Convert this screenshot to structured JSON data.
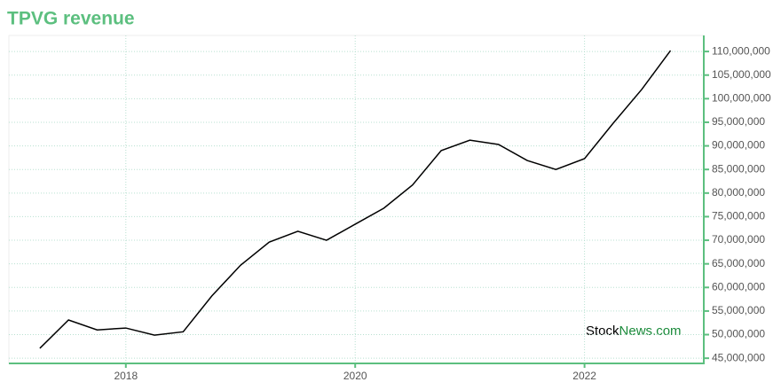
{
  "chart_data": {
    "type": "line",
    "title": "TPVG revenue",
    "watermark": {
      "brand": "Stock",
      "domain": "News.com"
    },
    "x": [
      2017.25,
      2017.5,
      2017.75,
      2018,
      2018.25,
      2018.5,
      2018.75,
      2019,
      2019.25,
      2019.5,
      2019.75,
      2020,
      2020.25,
      2020.5,
      2020.75,
      2021,
      2021.25,
      2021.5,
      2021.75,
      2022,
      2022.25,
      2022.5,
      2022.75
    ],
    "series": [
      {
        "color": "#000000",
        "values": [
          47100000,
          53100000,
          51000000,
          51400000,
          49900000,
          50600000,
          58200000,
          64700000,
          69600000,
          71900000,
          70000000,
          73400000,
          76800000,
          81700000,
          89000000,
          91200000,
          90300000,
          86900000,
          85000000,
          87300000,
          94800000,
          102000000,
          110200000
        ]
      }
    ],
    "xlim": [
      2016.98,
      2023.04
    ],
    "xticks": [
      2018,
      2020,
      2022
    ],
    "ylim": [
      43900000,
      113400000
    ],
    "yticks": [
      {
        "value": 45000000,
        "label": "45,000,000"
      },
      {
        "value": 50000000,
        "label": "50,000,000"
      },
      {
        "value": 55000000,
        "label": "55,000,000"
      },
      {
        "value": 60000000,
        "label": "60,000,000"
      },
      {
        "value": 65000000,
        "label": "65,000,000"
      },
      {
        "value": 70000000,
        "label": "70,000,000"
      },
      {
        "value": 75000000,
        "label": "75,000,000"
      },
      {
        "value": 80000000,
        "label": "80,000,000"
      },
      {
        "value": 85000000,
        "label": "85,000,000"
      },
      {
        "value": 90000000,
        "label": "90,000,000"
      },
      {
        "value": 95000000,
        "label": "95,000,000"
      },
      {
        "value": 100000000,
        "label": "100,000,000"
      },
      {
        "value": 105000000,
        "label": "105,000,000"
      },
      {
        "value": 110000000,
        "label": "110,000,000"
      }
    ],
    "grid": true,
    "axis_color": "#5cbf7f"
  }
}
